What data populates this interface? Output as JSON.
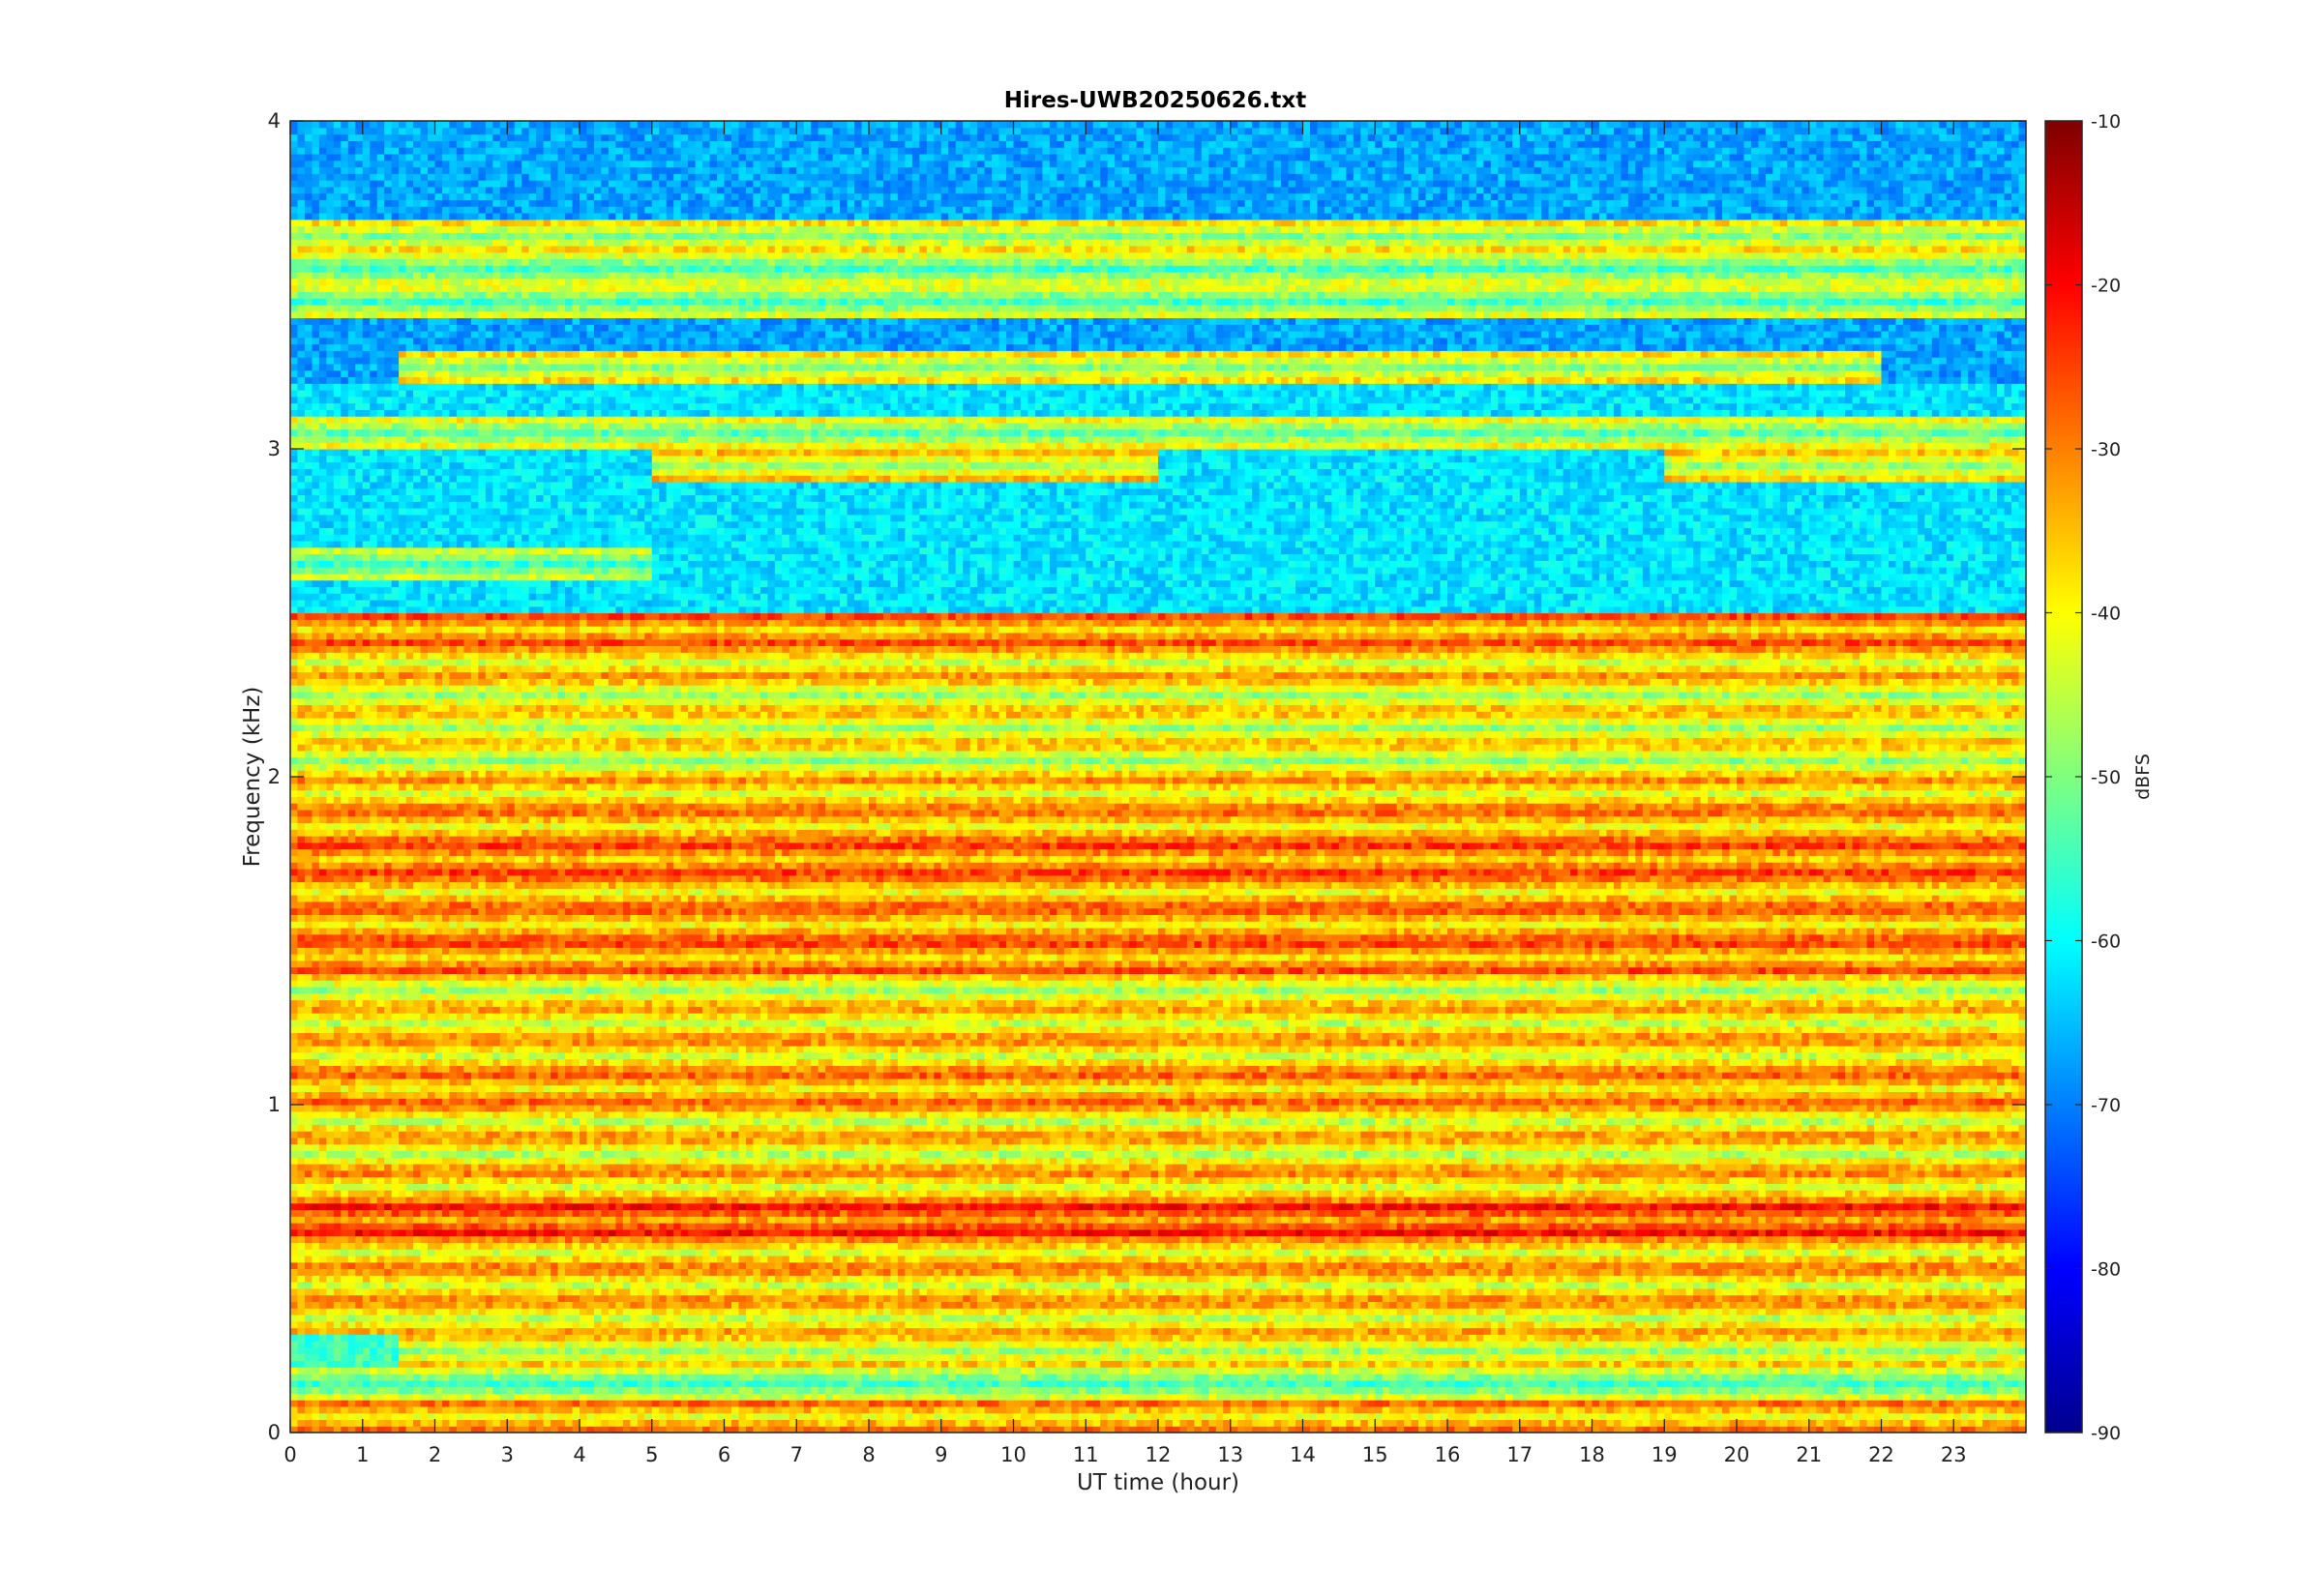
{
  "chart_data": {
    "type": "heatmap",
    "title": "Hires-UWB20250626.txt",
    "xlabel": "UT time (hour)",
    "ylabel": "Frequency (kHz)",
    "xlim": [
      0,
      24
    ],
    "ylim": [
      0,
      4
    ],
    "x_ticks": [
      "0",
      "1",
      "2",
      "3",
      "4",
      "5",
      "6",
      "7",
      "8",
      "9",
      "10",
      "11",
      "12",
      "13",
      "14",
      "15",
      "16",
      "17",
      "18",
      "19",
      "20",
      "21",
      "22",
      "23"
    ],
    "y_ticks": [
      "0",
      "1",
      "2",
      "3",
      "4"
    ],
    "colorbar": {
      "label": "dBFS",
      "colormap": "jet",
      "range": [
        -90,
        -10
      ],
      "ticks": [
        "-10",
        "-20",
        "-30",
        "-40",
        "-50",
        "-60",
        "-70",
        "-80",
        "-90"
      ]
    },
    "background_level_by_frequency": [
      {
        "f_min_khz": 0.0,
        "f_max_khz": 0.12,
        "dbfs": -68
      },
      {
        "f_min_khz": 0.12,
        "f_max_khz": 2.5,
        "dbfs": -55
      },
      {
        "f_min_khz": 2.5,
        "f_max_khz": 3.2,
        "dbfs": -62
      },
      {
        "f_min_khz": 3.2,
        "f_max_khz": 4.0,
        "dbfs": -67
      }
    ],
    "bands": [
      {
        "freq_khz": 0.05,
        "dbfs": -41,
        "t_start": 0,
        "t_end": 24
      },
      {
        "freq_khz": 0.15,
        "dbfs": -56,
        "t_start": 0,
        "t_end": 24
      },
      {
        "freq_khz": 0.25,
        "dbfs": -48,
        "t_start": 1.5,
        "t_end": 24
      },
      {
        "freq_khz": 0.35,
        "dbfs": -45,
        "t_start": 0,
        "t_end": 24
      },
      {
        "freq_khz": 0.45,
        "dbfs": -44,
        "t_start": 0,
        "t_end": 24
      },
      {
        "freq_khz": 0.55,
        "dbfs": -43,
        "t_start": 0,
        "t_end": 24
      },
      {
        "freq_khz": 0.65,
        "dbfs": -33,
        "t_start": 0,
        "t_end": 24
      },
      {
        "freq_khz": 0.75,
        "dbfs": -43,
        "t_start": 0,
        "t_end": 24
      },
      {
        "freq_khz": 0.85,
        "dbfs": -46,
        "t_start": 0,
        "t_end": 24
      },
      {
        "freq_khz": 0.95,
        "dbfs": -45,
        "t_start": 0,
        "t_end": 24
      },
      {
        "freq_khz": 1.05,
        "dbfs": -40,
        "t_start": 0,
        "t_end": 24
      },
      {
        "freq_khz": 1.15,
        "dbfs": -44,
        "t_start": 0,
        "t_end": 24
      },
      {
        "freq_khz": 1.25,
        "dbfs": -45,
        "t_start": 0,
        "t_end": 24
      },
      {
        "freq_khz": 1.35,
        "dbfs": -48,
        "t_start": 0,
        "t_end": 24
      },
      {
        "freq_khz": 1.45,
        "dbfs": -38,
        "t_start": 0,
        "t_end": 24
      },
      {
        "freq_khz": 1.55,
        "dbfs": -40,
        "t_start": 0,
        "t_end": 24
      },
      {
        "freq_khz": 1.65,
        "dbfs": -41,
        "t_start": 0,
        "t_end": 24
      },
      {
        "freq_khz": 1.75,
        "dbfs": -37,
        "t_start": 0,
        "t_end": 24
      },
      {
        "freq_khz": 1.85,
        "dbfs": -41,
        "t_start": 0,
        "t_end": 24
      },
      {
        "freq_khz": 1.95,
        "dbfs": -43,
        "t_start": 0,
        "t_end": 24
      },
      {
        "freq_khz": 2.05,
        "dbfs": -49,
        "t_start": 0,
        "t_end": 24
      },
      {
        "freq_khz": 2.15,
        "dbfs": -48,
        "t_start": 0,
        "t_end": 24
      },
      {
        "freq_khz": 2.25,
        "dbfs": -48,
        "t_start": 0,
        "t_end": 24
      },
      {
        "freq_khz": 2.35,
        "dbfs": -44,
        "t_start": 0,
        "t_end": 24
      },
      {
        "freq_khz": 2.45,
        "dbfs": -38,
        "t_start": 0,
        "t_end": 24
      },
      {
        "freq_khz": 2.65,
        "dbfs": -56,
        "t_start": 0,
        "t_end": 5
      },
      {
        "freq_khz": 2.95,
        "dbfs": -47,
        "t_start": 5,
        "t_end": 12
      },
      {
        "freq_khz": 2.95,
        "dbfs": -48,
        "t_start": 19,
        "t_end": 24
      },
      {
        "freq_khz": 3.05,
        "dbfs": -53,
        "t_start": 0,
        "t_end": 24
      },
      {
        "freq_khz": 3.25,
        "dbfs": -50,
        "t_start": 1.5,
        "t_end": 22
      },
      {
        "freq_khz": 3.45,
        "dbfs": -55,
        "t_start": 0,
        "t_end": 24
      },
      {
        "freq_khz": 3.55,
        "dbfs": -55,
        "t_start": 0,
        "t_end": 24
      },
      {
        "freq_khz": 3.65,
        "dbfs": -50,
        "t_start": 0,
        "t_end": 24
      }
    ]
  }
}
